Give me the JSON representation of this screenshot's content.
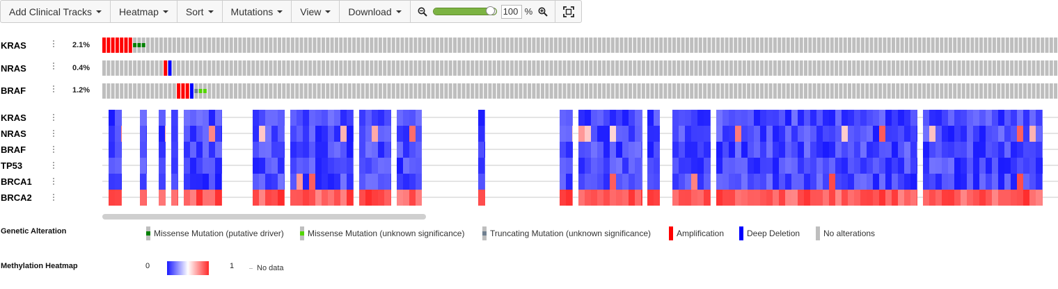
{
  "toolbar": {
    "add_clinical_tracks": "Add Clinical Tracks",
    "heatmap": "Heatmap",
    "sort": "Sort",
    "mutations": "Mutations",
    "view": "View",
    "download": "Download",
    "zoom_value": "100",
    "zoom_unit": "%",
    "zoom_slider_fraction": 0.92
  },
  "genetic_tracks": [
    {
      "gene": "KRAS",
      "percent": "2.1%"
    },
    {
      "gene": "NRAS",
      "percent": "0.4%"
    },
    {
      "gene": "BRAF",
      "percent": "1.2%"
    }
  ],
  "heatmap_tracks": [
    "KRAS",
    "NRAS",
    "BRAF",
    "TP53",
    "BRCA1",
    "BRCA2"
  ],
  "legend": {
    "genetic_title": "Genetic Alteration",
    "missense_driver": "Missense Mutation (putative driver)",
    "missense_unknown": "Missense Mutation (unknown significance)",
    "truncating_unknown": "Truncating Mutation (unknown significance)",
    "amplification": "Amplification",
    "deep_deletion": "Deep Deletion",
    "no_alterations": "No alterations",
    "heatmap_title": "Methylation Heatmap",
    "heat_min": "0",
    "heat_max": "1",
    "no_data": "No data"
  },
  "colors": {
    "amplification": "#ff0000",
    "deep_deletion": "#0000ff",
    "missense_driver": "#008000",
    "missense_unknown": "#53d400",
    "truncating_unknown": "#708090",
    "no_alteration": "#bebebe",
    "heat_low": "#1a1aff",
    "heat_mid": "#ffffff",
    "heat_high": "#ff2a2a"
  }
}
